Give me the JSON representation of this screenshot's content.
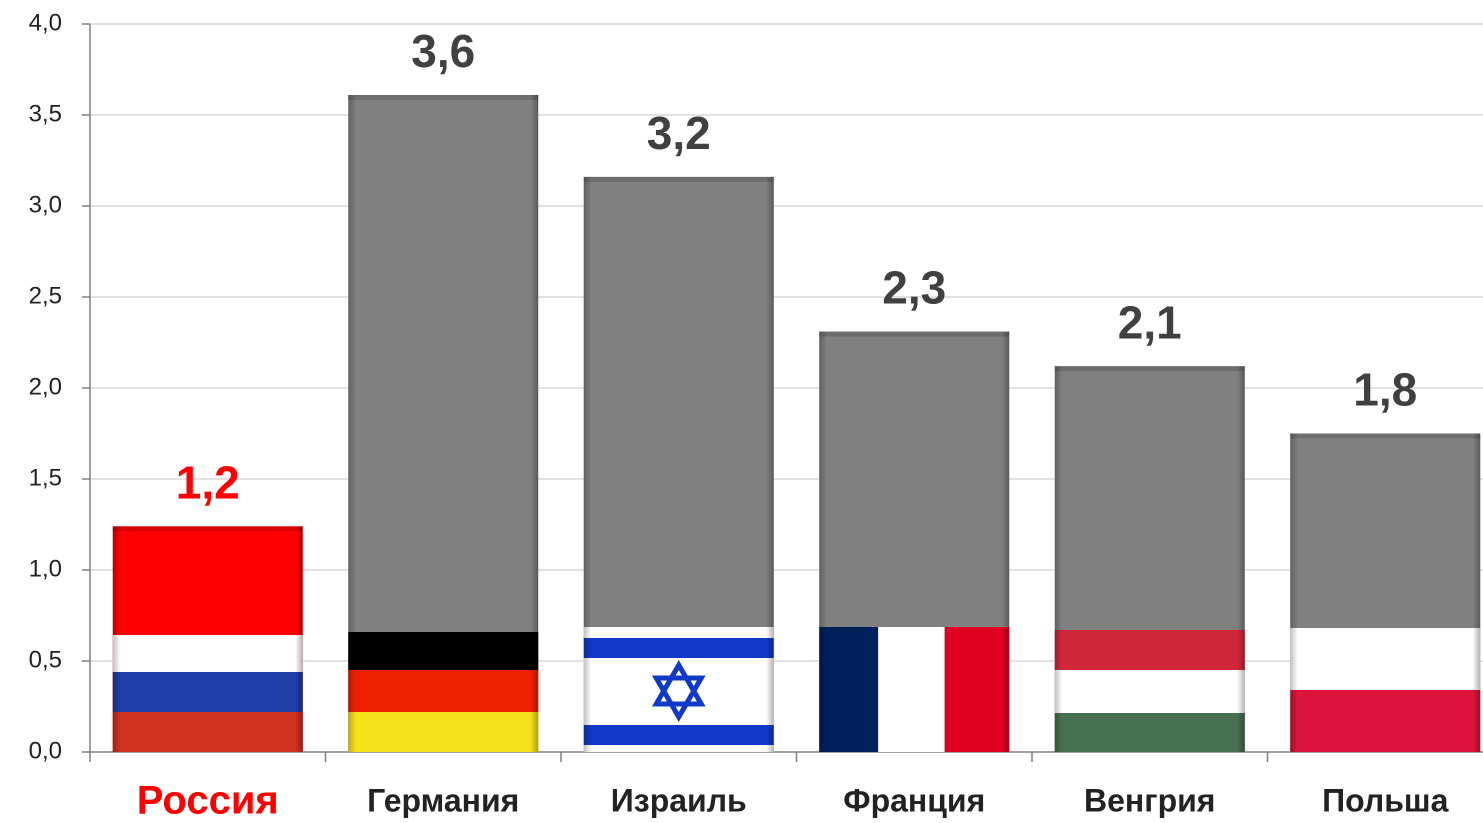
{
  "chart_data": {
    "type": "bar",
    "categories": [
      "Россия",
      "Германия",
      "Израиль",
      "Франция",
      "Венгрия",
      "Польша"
    ],
    "values": [
      1.24,
      3.61,
      3.16,
      2.31,
      2.12,
      1.75
    ],
    "value_labels": [
      "1,2",
      "3,6",
      "3,2",
      "2,3",
      "2,1",
      "1,8"
    ],
    "colors": [
      "#ff0000",
      "#808080",
      "#808080",
      "#808080",
      "#808080",
      "#808080"
    ],
    "label_colors": [
      "#ff0000",
      "#404040",
      "#404040",
      "#404040",
      "#404040",
      "#404040"
    ],
    "ylim": [
      0,
      4
    ],
    "yticks": [
      {
        "value": 0,
        "label": "0,0"
      },
      {
        "value": 0.5,
        "label": "0,5"
      },
      {
        "value": 1,
        "label": "1,0"
      },
      {
        "value": 1.5,
        "label": "1,5"
      },
      {
        "value": 2,
        "label": "2,0"
      },
      {
        "value": 2.5,
        "label": "2,5"
      },
      {
        "value": 3,
        "label": "3,0"
      },
      {
        "value": 3.5,
        "label": "3,5"
      },
      {
        "value": 4,
        "label": "4,0"
      }
    ],
    "grid": true
  }
}
